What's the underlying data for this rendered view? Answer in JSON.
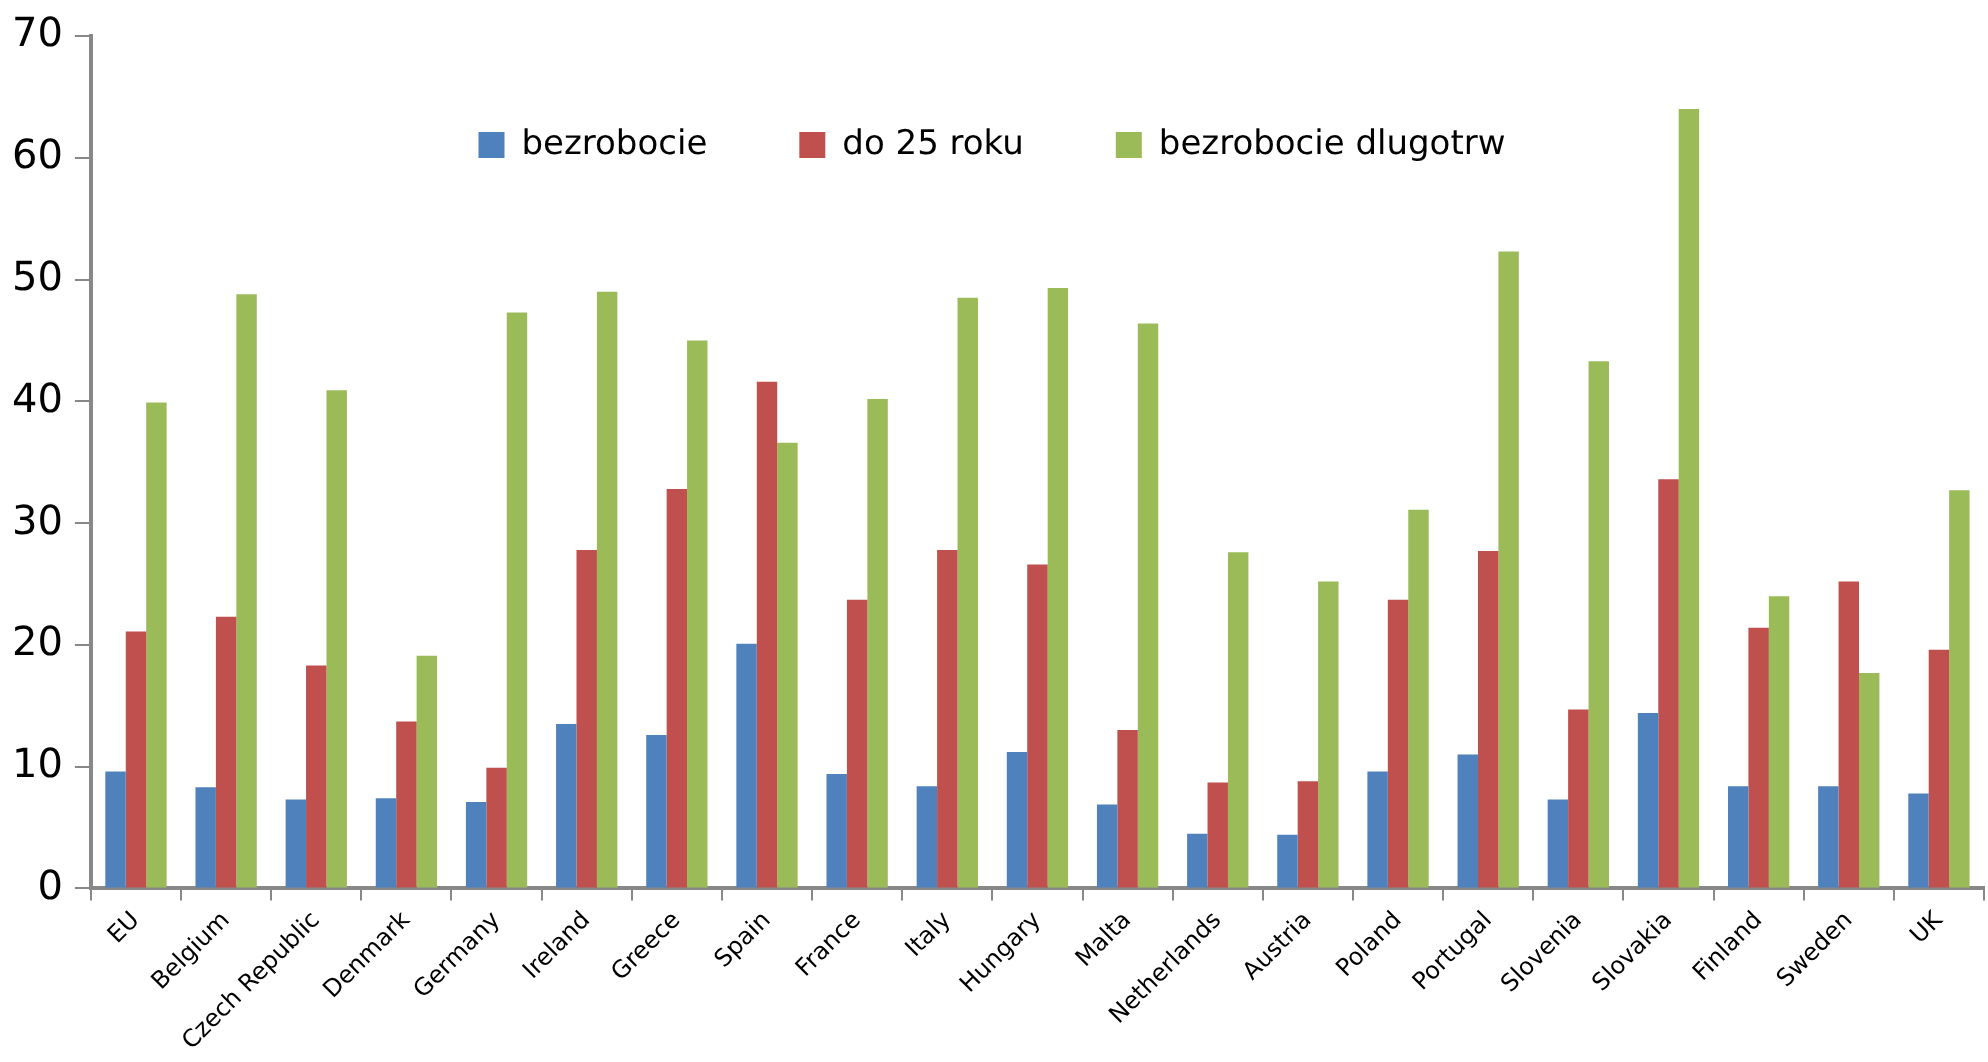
{
  "chart_data": {
    "type": "bar",
    "categories": [
      "EU",
      "Belgium",
      "Czech Republic",
      "Denmark",
      "Germany",
      "Ireland",
      "Greece",
      "Spain",
      "France",
      "Italy",
      "Hungary",
      "Malta",
      "Netherlands",
      "Austria",
      "Poland",
      "Portugal",
      "Slovenia",
      "Slovakia",
      "Finland",
      "Sweden",
      "UK"
    ],
    "series": [
      {
        "name": "bezrobocie",
        "color": "#4f81bd",
        "values": [
          9.6,
          8.3,
          7.3,
          7.4,
          7.1,
          13.5,
          12.6,
          20.1,
          9.4,
          8.4,
          11.2,
          6.9,
          4.5,
          4.4,
          9.6,
          11.0,
          7.3,
          14.4,
          8.4,
          8.4,
          7.8
        ]
      },
      {
        "name": "do 25 roku",
        "color": "#c0504d",
        "values": [
          21.1,
          22.3,
          18.3,
          13.7,
          9.9,
          27.8,
          32.8,
          41.6,
          23.7,
          27.8,
          26.6,
          13.0,
          8.7,
          8.8,
          23.7,
          27.7,
          14.7,
          33.6,
          21.4,
          25.2,
          19.6
        ]
      },
      {
        "name": "bezrobocie dlugotrw",
        "color": "#9bbb59",
        "values": [
          39.9,
          48.8,
          40.9,
          19.1,
          47.3,
          49.0,
          45.0,
          36.6,
          40.2,
          48.5,
          49.3,
          46.4,
          27.6,
          25.2,
          31.1,
          52.3,
          43.3,
          64.0,
          24.0,
          17.7,
          32.7
        ]
      }
    ],
    "ylim": [
      0,
      70
    ],
    "yticks": [
      0,
      10,
      20,
      30,
      40,
      50,
      60,
      70
    ],
    "grid": false,
    "legend": "top"
  }
}
